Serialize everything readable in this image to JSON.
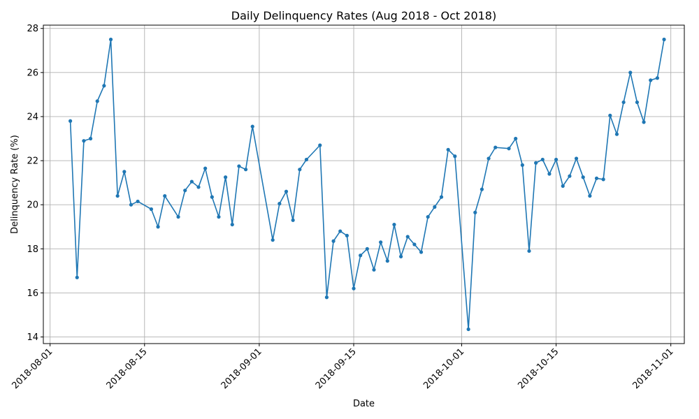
{
  "chart_data": {
    "type": "line",
    "title": "Daily Delinquency Rates (Aug 2018 - Oct 2018)",
    "xlabel": "Date",
    "ylabel": "Delinquency Rate (%)",
    "xlim": [
      "2018-07-31",
      "2018-11-03"
    ],
    "ylim": [
      13.7,
      28.15
    ],
    "xticks": [
      "2018-08-01",
      "2018-08-15",
      "2018-09-01",
      "2018-09-15",
      "2018-10-01",
      "2018-10-15",
      "2018-11-01"
    ],
    "yticks": [
      14,
      16,
      18,
      20,
      22,
      24,
      26,
      28
    ],
    "grid": true,
    "line_color": "#1f77b4",
    "series": [
      {
        "marker": "circle",
        "x": [
          "2018-08-04",
          "2018-08-05",
          "2018-08-06",
          "2018-08-07",
          "2018-08-08",
          "2018-08-09",
          "2018-08-10",
          "2018-08-11",
          "2018-08-12",
          "2018-08-13",
          "2018-08-14",
          "2018-08-16",
          "2018-08-17",
          "2018-08-18",
          "2018-08-20",
          "2018-08-21",
          "2018-08-22",
          "2018-08-23",
          "2018-08-24",
          "2018-08-25",
          "2018-08-26",
          "2018-08-27",
          "2018-08-28",
          "2018-08-29",
          "2018-08-30",
          "2018-08-31",
          "2018-09-03",
          "2018-09-04",
          "2018-09-05",
          "2018-09-06",
          "2018-09-07",
          "2018-09-08",
          "2018-09-10",
          "2018-09-11",
          "2018-09-12",
          "2018-09-13",
          "2018-09-14",
          "2018-09-15",
          "2018-09-16",
          "2018-09-17",
          "2018-09-18",
          "2018-09-19",
          "2018-09-20",
          "2018-09-21",
          "2018-09-22",
          "2018-09-23",
          "2018-09-24",
          "2018-09-25",
          "2018-09-26",
          "2018-09-27",
          "2018-09-28",
          "2018-09-29",
          "2018-09-30",
          "2018-10-02",
          "2018-10-03",
          "2018-10-04",
          "2018-10-05",
          "2018-10-06",
          "2018-10-08",
          "2018-10-09",
          "2018-10-10",
          "2018-10-11",
          "2018-10-12",
          "2018-10-13",
          "2018-10-14",
          "2018-10-15",
          "2018-10-16",
          "2018-10-17",
          "2018-10-18",
          "2018-10-19",
          "2018-10-20",
          "2018-10-21",
          "2018-10-22",
          "2018-10-23",
          "2018-10-24",
          "2018-10-25",
          "2018-10-26",
          "2018-10-27",
          "2018-10-28",
          "2018-10-29",
          "2018-10-30",
          "2018-10-31"
        ],
        "y": [
          23.8,
          16.7,
          22.9,
          23.0,
          24.7,
          25.4,
          27.5,
          20.4,
          21.5,
          20.0,
          20.15,
          19.8,
          19.0,
          20.4,
          19.45,
          20.65,
          21.05,
          20.8,
          21.65,
          20.35,
          19.45,
          21.25,
          19.1,
          21.75,
          21.6,
          23.55,
          18.4,
          20.05,
          20.6,
          19.3,
          21.6,
          22.05,
          22.7,
          15.8,
          18.35,
          18.8,
          18.6,
          16.2,
          17.7,
          18.0,
          17.05,
          18.3,
          17.45,
          19.1,
          17.65,
          18.55,
          18.2,
          17.85,
          19.45,
          19.9,
          20.35,
          22.5,
          22.2,
          14.35,
          19.65,
          20.7,
          22.1,
          22.6,
          22.55,
          23.0,
          21.8,
          17.9,
          21.9,
          22.05,
          21.4,
          22.05,
          20.85,
          21.3,
          22.1,
          21.25,
          20.4,
          21.2,
          21.15,
          24.05,
          23.2,
          24.65,
          26.0,
          24.65,
          23.75,
          25.65,
          25.75,
          27.5
        ]
      }
    ]
  }
}
